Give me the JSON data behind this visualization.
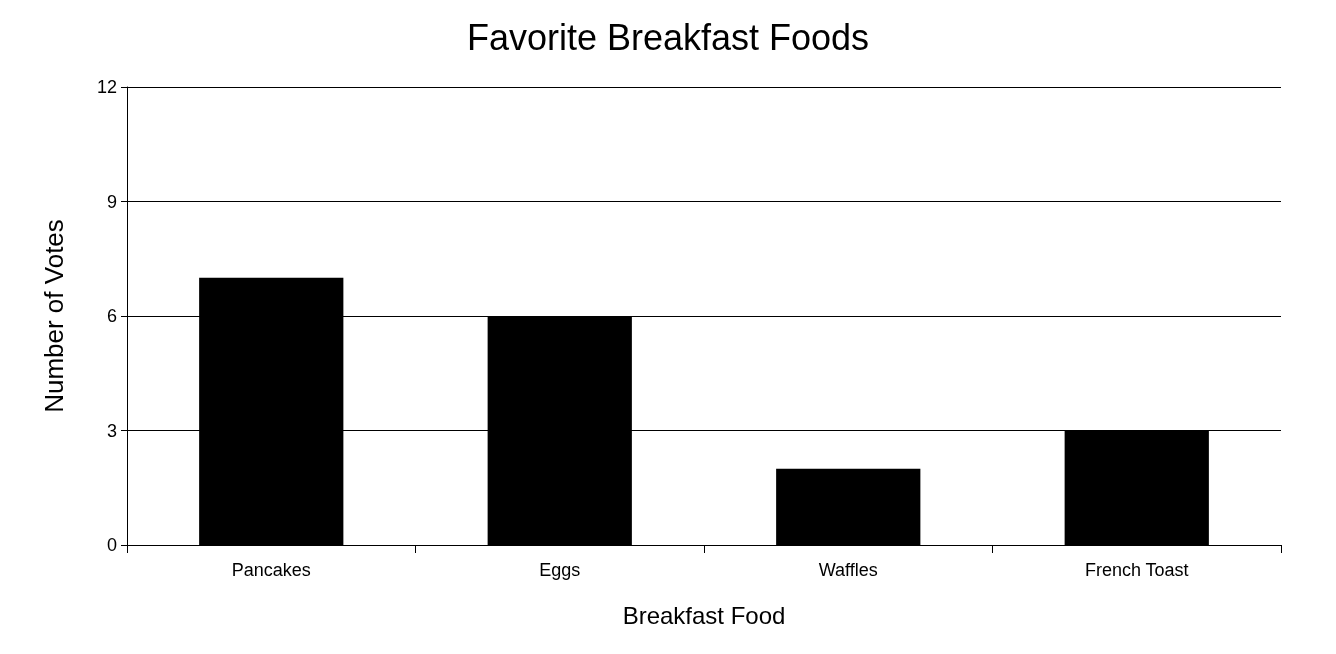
{
  "chart_data": {
    "type": "bar",
    "title": "Favorite Breakfast Foods",
    "xlabel": "Breakfast Food",
    "ylabel": "Number of Votes",
    "categories": [
      "Pancakes",
      "Eggs",
      "Waffles",
      "French Toast"
    ],
    "values": [
      7,
      6,
      2,
      3
    ],
    "color": "#000000",
    "ylim": [
      0,
      12
    ],
    "yticks": [
      0,
      3,
      6,
      9,
      12
    ],
    "grid": "y"
  }
}
